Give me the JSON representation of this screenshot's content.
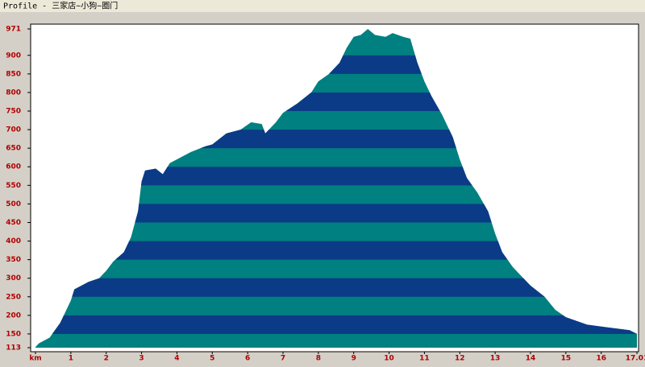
{
  "chart_data": {
    "type": "area",
    "title": "Profile - 三家店~小狗~圈门",
    "x": [
      0,
      0.1,
      0.4,
      0.7,
      1.0,
      1.1,
      1.5,
      1.8,
      2.0,
      2.2,
      2.5,
      2.7,
      2.9,
      3.0,
      3.1,
      3.4,
      3.6,
      3.8,
      4.0,
      4.4,
      4.8,
      5.0,
      5.4,
      5.8,
      6.1,
      6.4,
      6.5,
      6.8,
      7.0,
      7.4,
      7.8,
      8.0,
      8.3,
      8.6,
      8.8,
      9.0,
      9.2,
      9.4,
      9.6,
      9.9,
      10.1,
      10.4,
      10.6,
      10.8,
      11.0,
      11.2,
      11.5,
      11.8,
      12.0,
      12.2,
      12.5,
      12.8,
      13.0,
      13.2,
      13.5,
      13.8,
      14.0,
      14.4,
      14.7,
      15.0,
      15.3,
      15.6,
      16.0,
      16.4,
      16.8,
      17.01
    ],
    "values": [
      115,
      125,
      140,
      180,
      240,
      270,
      290,
      300,
      320,
      345,
      370,
      410,
      480,
      560,
      590,
      595,
      580,
      610,
      620,
      640,
      655,
      660,
      690,
      700,
      720,
      715,
      690,
      720,
      745,
      770,
      800,
      830,
      850,
      880,
      920,
      950,
      955,
      971,
      955,
      950,
      960,
      950,
      945,
      880,
      830,
      790,
      740,
      680,
      620,
      570,
      530,
      480,
      420,
      370,
      330,
      300,
      280,
      250,
      215,
      195,
      185,
      175,
      170,
      165,
      160,
      150
    ],
    "colors": [
      "#008080",
      "#0b3b86"
    ],
    "xlim": [
      0,
      17.01
    ],
    "xticks": [
      {
        "value": 0,
        "label": "km"
      },
      1,
      2,
      3,
      4,
      5,
      6,
      7,
      8,
      9,
      10,
      11,
      12,
      13,
      14,
      15,
      16,
      17.01
    ],
    "ylim": [
      113,
      971
    ],
    "yticks": [
      113,
      150,
      200,
      250,
      300,
      350,
      400,
      450,
      500,
      550,
      600,
      650,
      700,
      750,
      800,
      850,
      900,
      971
    ]
  }
}
